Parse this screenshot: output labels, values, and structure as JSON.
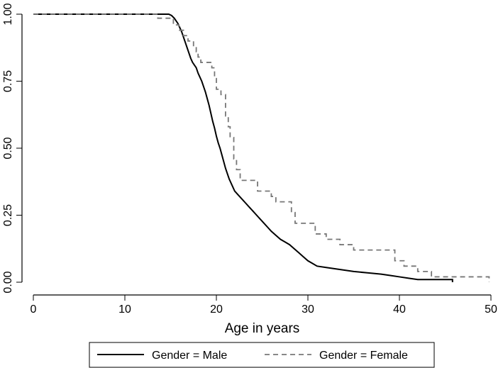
{
  "chart_data": {
    "type": "line",
    "subtype": "kaplan-meier step curve",
    "title": "",
    "xlabel": "Age in years",
    "ylabel": "",
    "xlim": [
      0,
      50
    ],
    "ylim": [
      0,
      1
    ],
    "xticks": [
      {
        "value": 0,
        "label": "0"
      },
      {
        "value": 10,
        "label": "10"
      },
      {
        "value": 20,
        "label": "20"
      },
      {
        "value": 30,
        "label": "30"
      },
      {
        "value": 40,
        "label": "40"
      },
      {
        "value": 50,
        "label": "50"
      }
    ],
    "yticks": [
      {
        "value": 0.0,
        "label": "0.00"
      },
      {
        "value": 0.25,
        "label": "0.25"
      },
      {
        "value": 0.5,
        "label": "0.50"
      },
      {
        "value": 0.75,
        "label": "0.75"
      },
      {
        "value": 1.0,
        "label": "1.00"
      }
    ],
    "grid": false,
    "legend_position": "bottom",
    "series": [
      {
        "name": "Gender = Male",
        "color": "#000000",
        "dash": "solid",
        "points": [
          [
            0,
            1.0
          ],
          [
            14.8,
            1.0
          ],
          [
            15.1,
            0.995
          ],
          [
            15.4,
            0.985
          ],
          [
            15.6,
            0.975
          ],
          [
            15.8,
            0.965
          ],
          [
            16.0,
            0.95
          ],
          [
            16.2,
            0.935
          ],
          [
            16.4,
            0.915
          ],
          [
            16.6,
            0.895
          ],
          [
            16.8,
            0.875
          ],
          [
            17.0,
            0.855
          ],
          [
            17.2,
            0.835
          ],
          [
            17.4,
            0.82
          ],
          [
            17.6,
            0.81
          ],
          [
            17.8,
            0.8
          ],
          [
            18.0,
            0.78
          ],
          [
            18.2,
            0.765
          ],
          [
            18.4,
            0.75
          ],
          [
            18.6,
            0.73
          ],
          [
            18.8,
            0.71
          ],
          [
            19.0,
            0.685
          ],
          [
            19.2,
            0.66
          ],
          [
            19.4,
            0.63
          ],
          [
            19.6,
            0.6
          ],
          [
            19.8,
            0.575
          ],
          [
            20.0,
            0.545
          ],
          [
            20.2,
            0.52
          ],
          [
            20.4,
            0.5
          ],
          [
            20.6,
            0.475
          ],
          [
            20.8,
            0.45
          ],
          [
            21.0,
            0.425
          ],
          [
            21.2,
            0.405
          ],
          [
            21.4,
            0.385
          ],
          [
            21.6,
            0.37
          ],
          [
            21.8,
            0.355
          ],
          [
            22.0,
            0.34
          ],
          [
            22.4,
            0.325
          ],
          [
            22.8,
            0.31
          ],
          [
            23.2,
            0.295
          ],
          [
            23.6,
            0.28
          ],
          [
            24.0,
            0.265
          ],
          [
            24.4,
            0.25
          ],
          [
            24.8,
            0.235
          ],
          [
            25.2,
            0.22
          ],
          [
            25.6,
            0.205
          ],
          [
            26.0,
            0.19
          ],
          [
            26.5,
            0.175
          ],
          [
            27.0,
            0.16
          ],
          [
            27.5,
            0.15
          ],
          [
            28.0,
            0.14
          ],
          [
            28.5,
            0.125
          ],
          [
            29.0,
            0.11
          ],
          [
            29.5,
            0.095
          ],
          [
            30.0,
            0.08
          ],
          [
            30.5,
            0.07
          ],
          [
            31.0,
            0.06
          ],
          [
            32.0,
            0.055
          ],
          [
            33.0,
            0.05
          ],
          [
            34.0,
            0.045
          ],
          [
            35.0,
            0.04
          ],
          [
            36.5,
            0.035
          ],
          [
            38.0,
            0.03
          ],
          [
            39.0,
            0.025
          ],
          [
            40.0,
            0.02
          ],
          [
            41.0,
            0.015
          ],
          [
            42.0,
            0.01
          ],
          [
            44.0,
            0.01
          ],
          [
            45.8,
            0.01
          ],
          [
            45.8,
            0.0
          ]
        ]
      },
      {
        "name": "Gender = Female",
        "color": "#777777",
        "dash": "dashed",
        "points": [
          [
            0,
            1.0
          ],
          [
            13.6,
            1.0
          ],
          [
            13.6,
            0.985
          ],
          [
            15.3,
            0.985
          ],
          [
            15.3,
            0.96
          ],
          [
            15.9,
            0.96
          ],
          [
            15.9,
            0.94
          ],
          [
            16.4,
            0.94
          ],
          [
            16.4,
            0.92
          ],
          [
            16.9,
            0.92
          ],
          [
            16.9,
            0.9
          ],
          [
            17.5,
            0.9
          ],
          [
            17.5,
            0.88
          ],
          [
            17.8,
            0.88
          ],
          [
            17.8,
            0.86
          ],
          [
            18.0,
            0.86
          ],
          [
            18.0,
            0.84
          ],
          [
            18.3,
            0.84
          ],
          [
            18.3,
            0.82
          ],
          [
            19.5,
            0.82
          ],
          [
            19.5,
            0.8
          ],
          [
            19.8,
            0.8
          ],
          [
            19.8,
            0.76
          ],
          [
            20.0,
            0.76
          ],
          [
            20.0,
            0.72
          ],
          [
            20.5,
            0.72
          ],
          [
            20.5,
            0.7
          ],
          [
            21.0,
            0.7
          ],
          [
            21.0,
            0.62
          ],
          [
            21.3,
            0.62
          ],
          [
            21.3,
            0.58
          ],
          [
            21.5,
            0.58
          ],
          [
            21.5,
            0.54
          ],
          [
            21.9,
            0.54
          ],
          [
            21.9,
            0.46
          ],
          [
            22.2,
            0.46
          ],
          [
            22.2,
            0.42
          ],
          [
            22.6,
            0.42
          ],
          [
            22.6,
            0.38
          ],
          [
            24.5,
            0.38
          ],
          [
            24.5,
            0.34
          ],
          [
            26.0,
            0.34
          ],
          [
            26.0,
            0.32
          ],
          [
            26.5,
            0.32
          ],
          [
            26.5,
            0.3
          ],
          [
            28.2,
            0.3
          ],
          [
            28.2,
            0.26
          ],
          [
            28.6,
            0.26
          ],
          [
            28.6,
            0.22
          ],
          [
            30.8,
            0.22
          ],
          [
            30.8,
            0.18
          ],
          [
            32.0,
            0.18
          ],
          [
            32.0,
            0.16
          ],
          [
            33.5,
            0.16
          ],
          [
            33.5,
            0.14
          ],
          [
            35.0,
            0.14
          ],
          [
            35.0,
            0.12
          ],
          [
            39.5,
            0.12
          ],
          [
            39.5,
            0.08
          ],
          [
            40.5,
            0.08
          ],
          [
            40.5,
            0.06
          ],
          [
            42.0,
            0.06
          ],
          [
            42.0,
            0.04
          ],
          [
            43.5,
            0.04
          ],
          [
            43.5,
            0.02
          ],
          [
            49.8,
            0.02
          ],
          [
            49.8,
            0.0
          ]
        ]
      }
    ]
  }
}
